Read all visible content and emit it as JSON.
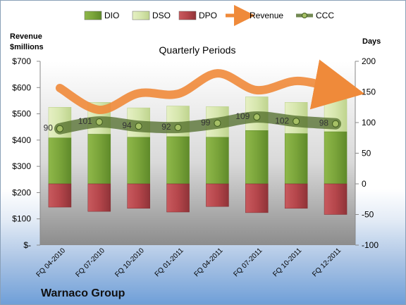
{
  "chart_data": {
    "type": "bar",
    "title": "Quarterly Periods",
    "company": "Warnaco Group",
    "left_axis_label": [
      "Revenue",
      "$millions"
    ],
    "right_axis_label": "Days",
    "categories": [
      "FQ 04-2010",
      "FQ 07-2010",
      "FQ 10-2010",
      "FQ 01-2011",
      "FQ 04-2011",
      "FQ 07-2011",
      "FQ 10-2011",
      "FQ 12-2011"
    ],
    "left_ticks": [
      "$-",
      "$100",
      "$200",
      "$300",
      "$400",
      "$500",
      "$600",
      "$700"
    ],
    "right_ticks": [
      "-100",
      "-50",
      "0",
      "50",
      "100",
      "150",
      "200"
    ],
    "left_ylim": [
      0,
      700
    ],
    "right_ylim": [
      -100,
      200
    ],
    "series": [
      {
        "name": "DIO",
        "axis": "right",
        "color": "#7aa43a",
        "values": [
          75,
          81,
          76,
          77,
          76,
          87,
          82,
          85
        ]
      },
      {
        "name": "DSO",
        "axis": "right",
        "color": "#d6e6ad",
        "values": [
          50,
          52,
          48,
          50,
          50,
          55,
          51,
          53
        ]
      },
      {
        "name": "DPO",
        "axis": "right",
        "color": "#b5464b",
        "values": [
          -38,
          -45,
          -40,
          -46,
          -37,
          -47,
          -40,
          -50
        ]
      },
      {
        "name": "Revenue",
        "axis": "left",
        "color": "#ef8a3a",
        "values": [
          598,
          515,
          578,
          576,
          654,
          590,
          625,
          600
        ]
      },
      {
        "name": "CCC",
        "axis": "right",
        "color": "#76923c",
        "values": [
          90,
          101,
          94,
          92,
          99,
          109,
          102,
          98
        ]
      }
    ],
    "ccc_labels": [
      "90",
      "101",
      "94",
      "92",
      "99",
      "109",
      "102",
      "98"
    ],
    "legend": [
      "DIO",
      "DSO",
      "DPO",
      "Revenue",
      "CCC"
    ],
    "legend_position": "top"
  }
}
